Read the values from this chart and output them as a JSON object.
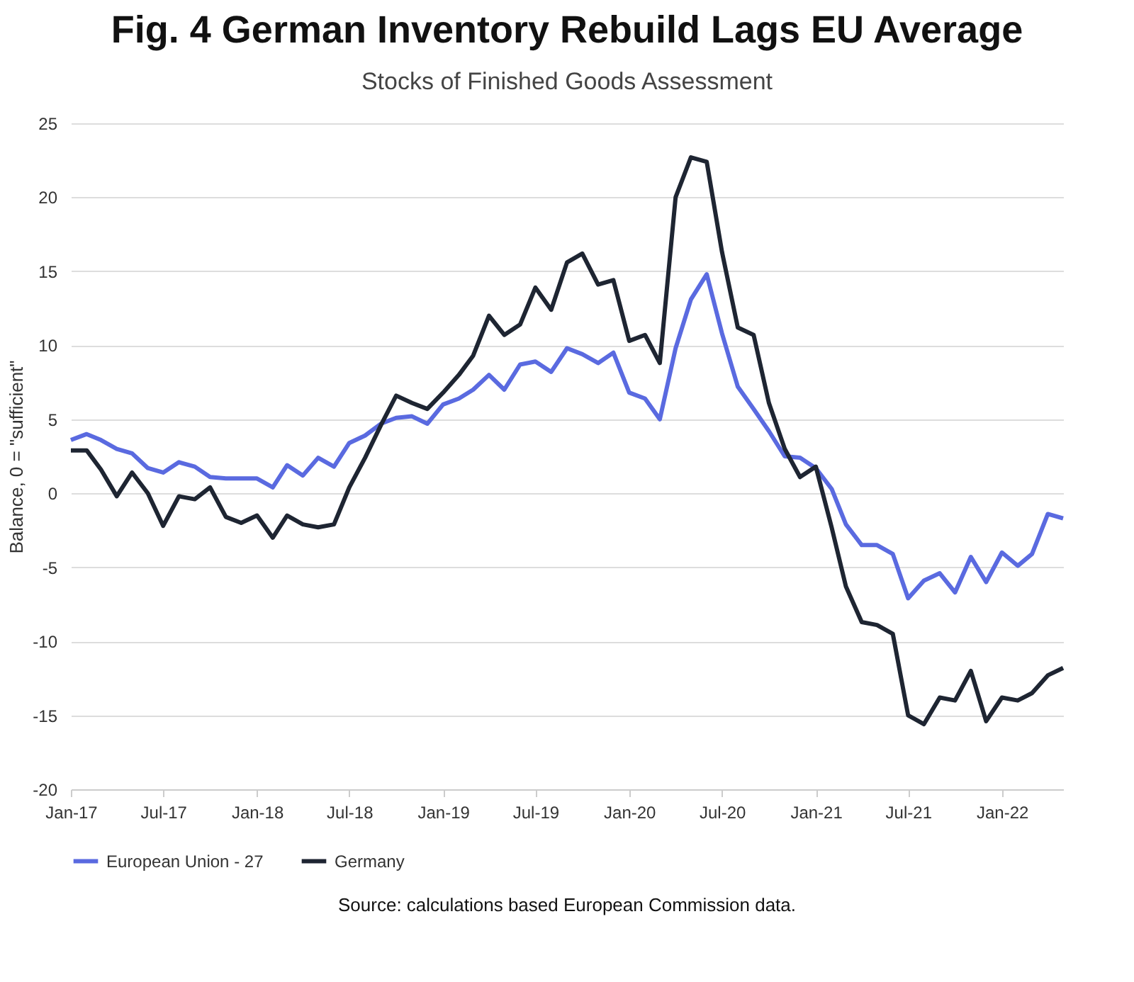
{
  "chart_data": {
    "type": "line",
    "title": "Fig. 4 German Inventory Rebuild Lags EU Average",
    "subtitle": "Stocks of Finished Goods Assessment",
    "ylabel": "Balance, 0 = \"sufficient\"",
    "x": [
      "2017-01",
      "2017-02",
      "2017-03",
      "2017-04",
      "2017-05",
      "2017-06",
      "2017-07",
      "2017-08",
      "2017-09",
      "2017-10",
      "2017-11",
      "2017-12",
      "2018-01",
      "2018-02",
      "2018-03",
      "2018-04",
      "2018-05",
      "2018-06",
      "2018-07",
      "2018-08",
      "2018-09",
      "2018-10",
      "2018-11",
      "2018-12",
      "2019-01",
      "2019-02",
      "2019-03",
      "2019-04",
      "2019-05",
      "2019-06",
      "2019-07",
      "2019-08",
      "2019-09",
      "2019-10",
      "2019-11",
      "2019-12",
      "2020-01",
      "2020-02",
      "2020-03",
      "2020-04",
      "2020-05",
      "2020-06",
      "2020-07",
      "2020-08",
      "2020-09",
      "2020-10",
      "2020-11",
      "2020-12",
      "2021-01",
      "2021-02",
      "2021-03",
      "2021-04",
      "2021-05",
      "2021-06",
      "2021-07",
      "2021-08",
      "2021-09",
      "2021-10",
      "2021-11",
      "2021-12",
      "2022-01",
      "2022-02",
      "2022-03",
      "2022-04",
      "2022-05"
    ],
    "series": [
      {
        "name": "European Union - 27",
        "color": "#5a6ae0",
        "values": [
          3.6,
          4.0,
          3.6,
          3.0,
          2.7,
          1.7,
          1.4,
          2.1,
          1.8,
          1.1,
          1.0,
          1.0,
          1.0,
          0.4,
          1.9,
          1.2,
          2.4,
          1.8,
          3.4,
          3.9,
          4.7,
          5.1,
          5.2,
          4.7,
          6.0,
          6.4,
          7.0,
          8.0,
          7.0,
          8.7,
          8.9,
          8.2,
          9.8,
          9.4,
          8.8,
          9.5,
          6.8,
          6.4,
          5.0,
          9.8,
          13.1,
          14.8,
          10.8,
          7.2,
          5.7,
          4.2,
          2.5,
          2.4,
          1.7,
          0.3,
          -2.1,
          -3.5,
          -3.5,
          -4.1,
          -7.1,
          -5.9,
          -5.4,
          -6.7,
          -4.3,
          -6.0,
          -4.0,
          -4.9,
          -4.1,
          -1.4,
          -1.7
        ]
      },
      {
        "name": "Germany",
        "color": "#1e2532",
        "values": [
          2.9,
          2.9,
          1.6,
          -0.2,
          1.4,
          0.0,
          -2.2,
          -0.2,
          -0.4,
          0.4,
          -1.6,
          -2.0,
          -1.5,
          -3.0,
          -1.5,
          -2.1,
          -2.3,
          -2.1,
          0.4,
          2.4,
          4.6,
          6.6,
          6.1,
          5.7,
          6.8,
          8.0,
          9.3,
          12.0,
          10.7,
          11.4,
          13.9,
          12.4,
          15.6,
          16.2,
          14.1,
          14.4,
          10.3,
          10.7,
          8.8,
          20.0,
          22.7,
          22.4,
          16.3,
          11.2,
          10.7,
          6.1,
          3.0,
          1.1,
          1.8,
          -2.3,
          -6.3,
          -8.7,
          -8.9,
          -9.5,
          -15.0,
          -15.6,
          -13.8,
          -14.0,
          -12.0,
          -15.4,
          -13.8,
          -14.0,
          -13.5,
          -12.3,
          -11.8
        ]
      }
    ],
    "xlim": [
      "2017-01",
      "2022-05"
    ],
    "xticks": [
      {
        "value": "2017-01",
        "label": "Jan-17"
      },
      {
        "value": "2017-07",
        "label": "Jul-17"
      },
      {
        "value": "2018-01",
        "label": "Jan-18"
      },
      {
        "value": "2018-07",
        "label": "Jul-18"
      },
      {
        "value": "2019-01",
        "label": "Jan-19"
      },
      {
        "value": "2019-07",
        "label": "Jul-19"
      },
      {
        "value": "2020-01",
        "label": "Jan-20"
      },
      {
        "value": "2020-07",
        "label": "Jul-20"
      },
      {
        "value": "2021-01",
        "label": "Jan-21"
      },
      {
        "value": "2021-07",
        "label": "Jul-21"
      },
      {
        "value": "2022-01",
        "label": "Jan-22"
      }
    ],
    "ylim": [
      -20,
      25
    ],
    "yticks": [
      -20,
      -15,
      -10,
      -5,
      0,
      5,
      10,
      15,
      20,
      25
    ],
    "grid": "y",
    "legend": "bottom",
    "marker": "none",
    "line_style": "solid",
    "annotations": [
      "Source: calculations based European Commission data."
    ]
  }
}
